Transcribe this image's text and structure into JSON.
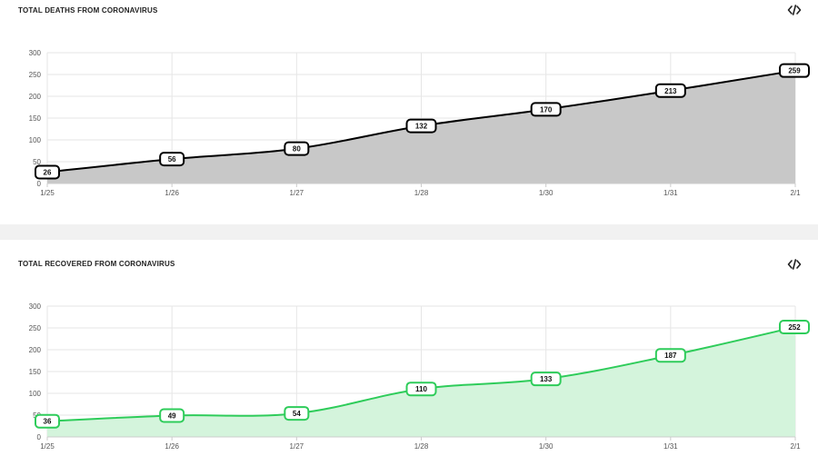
{
  "chart_data": [
    {
      "type": "area",
      "title": "TOTAL DEATHS FROM CORONAVIRUS",
      "categories": [
        "1/25",
        "1/26",
        "1/27",
        "1/28",
        "1/30",
        "1/31",
        "2/1"
      ],
      "series": [
        {
          "values": [
            26,
            56,
            80,
            132,
            170,
            213,
            259
          ]
        }
      ],
      "ylim": [
        0,
        300
      ],
      "yticks": [
        0,
        50,
        100,
        150,
        200,
        250,
        300
      ],
      "grid": true,
      "line_color": "#000000",
      "fill_color": "#c8c8c8"
    },
    {
      "type": "area",
      "title": "TOTAL RECOVERED FROM CORONAVIRUS",
      "categories": [
        "1/25",
        "1/26",
        "1/27",
        "1/28",
        "1/30",
        "1/31",
        "2/1"
      ],
      "series": [
        {
          "values": [
            36,
            49,
            54,
            110,
            133,
            187,
            252
          ]
        }
      ],
      "ylim": [
        0,
        300
      ],
      "yticks": [
        0,
        50,
        100,
        150,
        200,
        250,
        300
      ],
      "grid": true,
      "line_color": "#2ecc5a",
      "fill_color": "#d4f4dc"
    }
  ],
  "icons": {
    "embed": "code-embed-icon"
  }
}
